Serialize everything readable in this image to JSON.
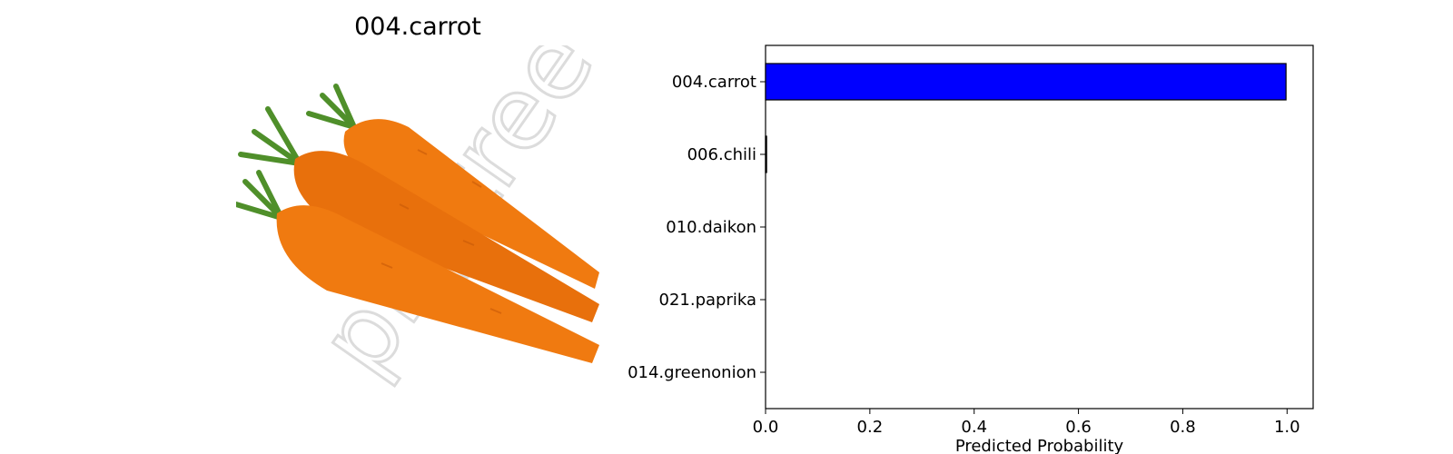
{
  "image_panel": {
    "title": "004.carrot",
    "watermark": "pngtree"
  },
  "colors": {
    "bar": "#0000ff",
    "bar_edge": "#000000",
    "carrot": "#f07a10",
    "carrot_dark": "#d9640a",
    "leaf": "#4f8f2a"
  },
  "chart_data": {
    "type": "bar",
    "orientation": "horizontal",
    "categories": [
      "004.carrot",
      "006.chili",
      "010.daikon",
      "021.paprika",
      "014.greenonion"
    ],
    "values": [
      0.998,
      0.002,
      0.0,
      0.0,
      0.0
    ],
    "xlabel": "Predicted Probability",
    "ylabel": "",
    "xlim": [
      0,
      1.05
    ],
    "xticks": [
      "0.0",
      "0.2",
      "0.4",
      "0.6",
      "0.8",
      "1.0"
    ],
    "grid": false
  }
}
